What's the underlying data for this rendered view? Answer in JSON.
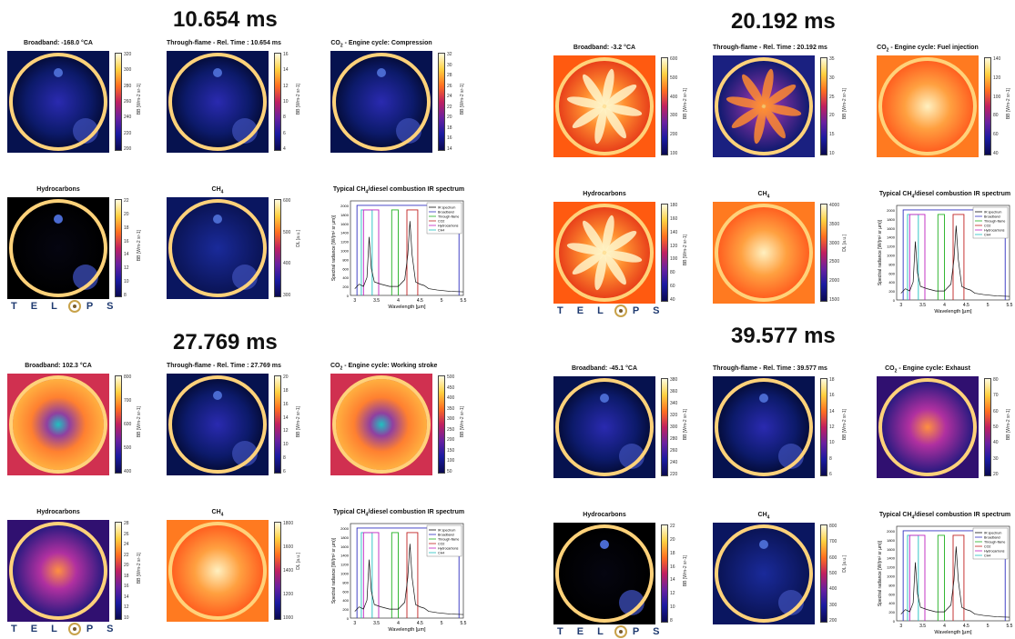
{
  "panels": [
    {
      "time": "10.654 ms",
      "images": [
        {
          "title": "Broadband:  -168.0 °CA",
          "scheme": "cold",
          "ticks": [
            "320",
            "300",
            "280",
            "260",
            "240",
            "220",
            "200"
          ],
          "unit": "BB [Wm-2 sr-1]"
        },
        {
          "title": "Through-flame - Rel. Time : 10.654 ms",
          "scheme": "cold",
          "ticks": [
            "16",
            "14",
            "12",
            "10",
            "8",
            "6",
            "4"
          ],
          "unit": "BB [Wm-2 sr-1]"
        },
        {
          "title_main": "CO",
          "title_sub": "2",
          "title_rest": " - Engine cycle: Compression",
          "scheme": "cold",
          "ticks": [
            "32",
            "30",
            "28",
            "26",
            "24",
            "22",
            "20",
            "18",
            "16",
            "14"
          ],
          "unit": "BB [Wm-2 sr-1]"
        },
        {
          "title": "Hydrocarbons",
          "scheme": "black",
          "ticks": [
            "22",
            "20",
            "18",
            "16",
            "14",
            "12",
            "10",
            "8"
          ],
          "unit": "BB [Wm-2 sr-1]"
        },
        {
          "title_main": "CH",
          "title_sub": "4",
          "title_rest": "",
          "scheme": "noise",
          "ticks": [
            "600",
            "500",
            "400",
            "300"
          ],
          "unit": "DL [a.u.]"
        }
      ],
      "spectrum": {
        "title_main": "Typical CH",
        "title_sub": "4",
        "title_rest": "/diesel combustion IR spectrum"
      }
    },
    {
      "time": "20.192 ms",
      "images": [
        {
          "title": "Broadband:  -3.2 °CA",
          "scheme": "hot",
          "ticks": [
            "600",
            "500",
            "400",
            "300",
            "200",
            "100"
          ],
          "unit": "BB [Wm-2 sr-1]"
        },
        {
          "title": "Through-flame - Rel. Time : 20.192 ms",
          "scheme": "star",
          "ticks": [
            "35",
            "30",
            "25",
            "20",
            "15",
            "10"
          ],
          "unit": "BB [Wm-2 sr-1]"
        },
        {
          "title_main": "CO",
          "title_sub": "2",
          "title_rest": " - Engine cycle: Fuel injection",
          "scheme": "hotsoft",
          "ticks": [
            "140",
            "120",
            "100",
            "80",
            "60",
            "40"
          ],
          "unit": "BB [Wm-2 sr-1]"
        },
        {
          "title": "Hydrocarbons",
          "scheme": "hot",
          "ticks": [
            "180",
            "160",
            "140",
            "120",
            "100",
            "80",
            "60",
            "40"
          ],
          "unit": "BB [Wm-2 sr-1]"
        },
        {
          "title_main": "CH",
          "title_sub": "4",
          "title_rest": "",
          "scheme": "hotsoft",
          "ticks": [
            "4000",
            "3500",
            "3000",
            "2500",
            "2000",
            "1500"
          ],
          "unit": "DL [a.u.]"
        }
      ],
      "spectrum": {
        "title_main": "Typical CH",
        "title_sub": "4",
        "title_rest": "/diesel combustion IR spectrum"
      }
    },
    {
      "time": "27.769 ms",
      "images": [
        {
          "title": "Broadband:  102.3 °CA",
          "scheme": "warm",
          "ticks": [
            "800",
            "700",
            "600",
            "500",
            "400"
          ],
          "unit": "BB [Wm-2 sr-1]"
        },
        {
          "title": "Through-flame - Rel. Time : 27.769 ms",
          "scheme": "cold",
          "ticks": [
            "20",
            "18",
            "16",
            "14",
            "12",
            "10",
            "8",
            "6"
          ],
          "unit": "BB [Wm-2 sr-1]"
        },
        {
          "title_main": "CO",
          "title_sub": "2",
          "title_rest": " - Engine cycle: Working stroke",
          "scheme": "warm",
          "ticks": [
            "500",
            "450",
            "400",
            "350",
            "300",
            "250",
            "200",
            "150",
            "100",
            "50"
          ],
          "unit": "BB [Wm-2 sr-1]"
        },
        {
          "title": "Hydrocarbons",
          "scheme": "purple",
          "ticks": [
            "28",
            "26",
            "24",
            "22",
            "20",
            "18",
            "16",
            "14",
            "12",
            "10"
          ],
          "unit": "BB [Wm-2 sr-1]"
        },
        {
          "title_main": "CH",
          "title_sub": "4",
          "title_rest": "",
          "scheme": "hotsoft",
          "ticks": [
            "1800",
            "1600",
            "1400",
            "1200",
            "1000"
          ],
          "unit": "DL [a.u.]"
        }
      ],
      "spectrum": {
        "title_main": "Typical CH",
        "title_sub": "4",
        "title_rest": "/diesel combustion IR spectrum"
      }
    },
    {
      "time": "39.577 ms",
      "images": [
        {
          "title": "Broadband:  -45.1 °CA",
          "scheme": "cold",
          "ticks": [
            "380",
            "360",
            "340",
            "320",
            "300",
            "280",
            "260",
            "240",
            "220"
          ],
          "unit": "BB [Wm-2 sr-1]"
        },
        {
          "title": "Through-flame - Rel. Time : 39.577 ms",
          "scheme": "cold",
          "ticks": [
            "18",
            "16",
            "14",
            "12",
            "10",
            "8",
            "6"
          ],
          "unit": "BB [Wm-2 sr-1]"
        },
        {
          "title_main": "CO",
          "title_sub": "2",
          "title_rest": " - Engine cycle: Exhaust",
          "scheme": "purple",
          "ticks": [
            "80",
            "70",
            "60",
            "50",
            "40",
            "30",
            "20"
          ],
          "unit": "BB [Wm-2 sr-1]"
        },
        {
          "title": "Hydrocarbons",
          "scheme": "black",
          "ticks": [
            "22",
            "20",
            "18",
            "16",
            "14",
            "12",
            "10",
            "8"
          ],
          "unit": "BB [Wm-2 sr-1]"
        },
        {
          "title_main": "CH",
          "title_sub": "4",
          "title_rest": "",
          "scheme": "noise",
          "ticks": [
            "800",
            "700",
            "600",
            "500",
            "400",
            "300",
            "200"
          ],
          "unit": "DL [a.u.]"
        }
      ],
      "spectrum": {
        "title_main": "Typical CH",
        "title_sub": "4",
        "title_rest": "/diesel combustion IR spectrum"
      }
    }
  ],
  "spectrum_common": {
    "xlabel": "Wavelength [µm]",
    "ylabel": "Spectral radiance [W/(m² sr µm)]",
    "xticks": [
      "3",
      "3.5",
      "4",
      "4.5",
      "5",
      "5.5"
    ],
    "yticks": [
      "2000",
      "1800",
      "1600",
      "1400",
      "1200",
      "1000",
      "800",
      "600",
      "400",
      "200",
      "0"
    ],
    "legend": [
      {
        "label": "IR spectrum",
        "color": "#111111"
      },
      {
        "label": "Broadband",
        "color": "#3030c0"
      },
      {
        "label": "Through-flame",
        "color": "#20b020"
      },
      {
        "label": "CO2",
        "color": "#c02020"
      },
      {
        "label": "Hydrocarbons",
        "color": "#c020c0"
      },
      {
        "label": "CH4",
        "color": "#20c0c0"
      }
    ]
  },
  "logo": {
    "text_left": "T E L",
    "text_right": "P S"
  },
  "colors": {
    "ring": "#ffd27a",
    "cold_bg": "#0a1a6a",
    "hot_bg": "#ff6a1a"
  }
}
